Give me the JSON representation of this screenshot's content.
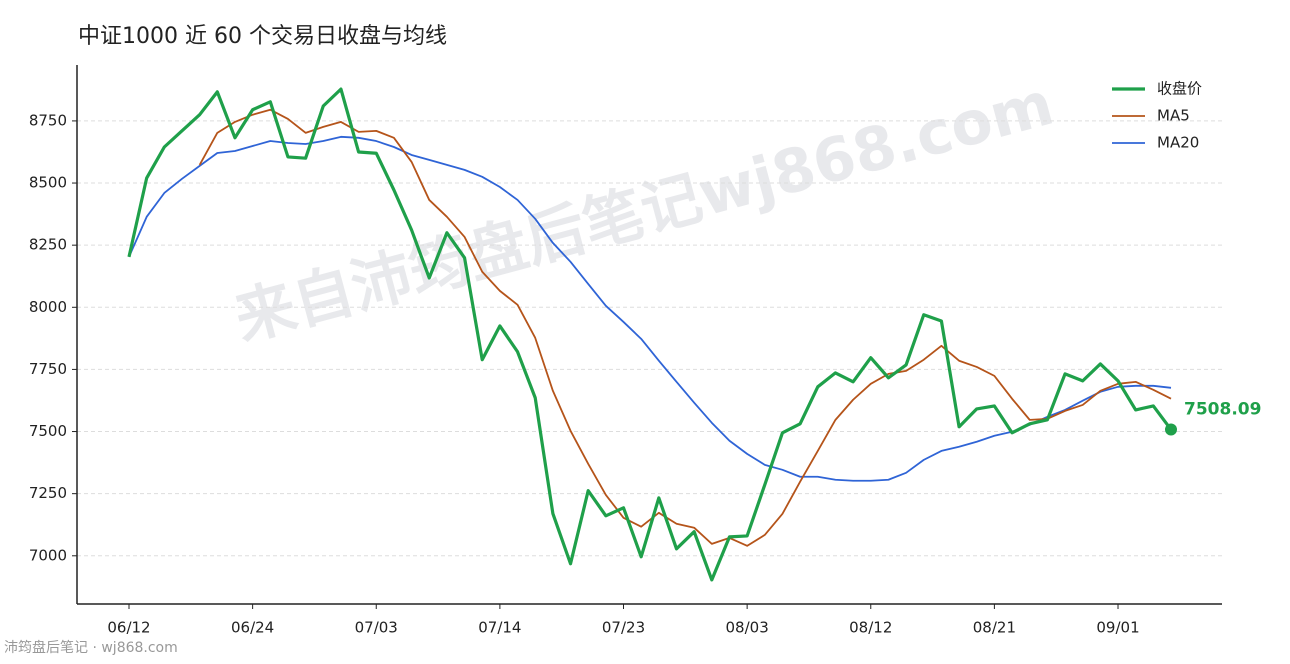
{
  "chart_data": {
    "type": "line",
    "title": "中证1000 近 60 个交易日收盘与均线",
    "watermark": "来自沛筠盘后笔记wj868.com",
    "footer": "沛筠盘后笔记 · wj868.com",
    "categories": [
      "06/12",
      null,
      null,
      null,
      null,
      null,
      null,
      "06/24",
      null,
      null,
      null,
      null,
      null,
      null,
      "07/03",
      null,
      null,
      null,
      null,
      null,
      null,
      "07/14",
      null,
      null,
      null,
      null,
      null,
      null,
      "07/23",
      null,
      null,
      null,
      null,
      null,
      null,
      "08/03",
      null,
      null,
      null,
      null,
      null,
      null,
      "08/12",
      null,
      null,
      null,
      null,
      null,
      null,
      "08/21",
      null,
      null,
      null,
      null,
      null,
      null,
      "09/01",
      null,
      null,
      null
    ],
    "series": [
      {
        "name": "收盘价",
        "color": "#1fa04a",
        "width": 3.2,
        "values": [
          8203,
          8520,
          8645,
          8710,
          8775,
          8867,
          8682,
          8795,
          8827,
          8605,
          8600,
          8810,
          8878,
          8625,
          8620,
          8472,
          8311,
          8118,
          8300,
          8199,
          7789,
          7925,
          7821,
          7636,
          7170,
          6968,
          7262,
          7161,
          7193,
          6996,
          7233,
          7028,
          7097,
          6903,
          7076,
          7080,
          7286,
          7495,
          7531,
          7680,
          7736,
          7700,
          7797,
          7716,
          7768,
          7970,
          7945,
          7519,
          7591,
          7603,
          7495,
          7531,
          7547,
          7732,
          7704,
          7772,
          7704,
          7587,
          7603,
          7508.09
        ]
      },
      {
        "name": "MA5",
        "color": "#b5541a",
        "width": 1.8,
        "values": [
          null,
          null,
          null,
          null,
          8573,
          8702,
          8746,
          8775,
          8795,
          8758,
          8702,
          8726,
          8746,
          8706,
          8710,
          8682,
          8585,
          8432,
          8364,
          8283,
          8143,
          8066,
          8010,
          7877,
          7664,
          7503,
          7370,
          7245,
          7153,
          7117,
          7173,
          7129,
          7113,
          7048,
          7072,
          7040,
          7084,
          7169,
          7298,
          7422,
          7547,
          7628,
          7692,
          7732,
          7744,
          7789,
          7845,
          7785,
          7760,
          7724,
          7632,
          7547,
          7551,
          7583,
          7607,
          7664,
          7692,
          7700,
          7668,
          7632
        ]
      },
      {
        "name": "MA20",
        "color": "#2f64d6",
        "width": 1.8,
        "values": [
          8203,
          8364,
          8460,
          8517,
          8569,
          8621,
          8629,
          8649,
          8669,
          8661,
          8657,
          8669,
          8686,
          8682,
          8669,
          8645,
          8613,
          8593,
          8573,
          8553,
          8525,
          8484,
          8432,
          8356,
          8259,
          8183,
          8094,
          8006,
          7941,
          7873,
          7785,
          7700,
          7616,
          7535,
          7463,
          7410,
          7366,
          7346,
          7318,
          7318,
          7306,
          7302,
          7302,
          7306,
          7334,
          7386,
          7422,
          7439,
          7459,
          7483,
          7499,
          7527,
          7559,
          7587,
          7624,
          7660,
          7680,
          7684,
          7684,
          7676
        ]
      }
    ],
    "ylim": [
      6806,
      8975
    ],
    "yticks": [
      7000,
      7250,
      7500,
      7750,
      8000,
      8250,
      8500,
      8750
    ],
    "grid": true,
    "legend": "upper-right"
  }
}
